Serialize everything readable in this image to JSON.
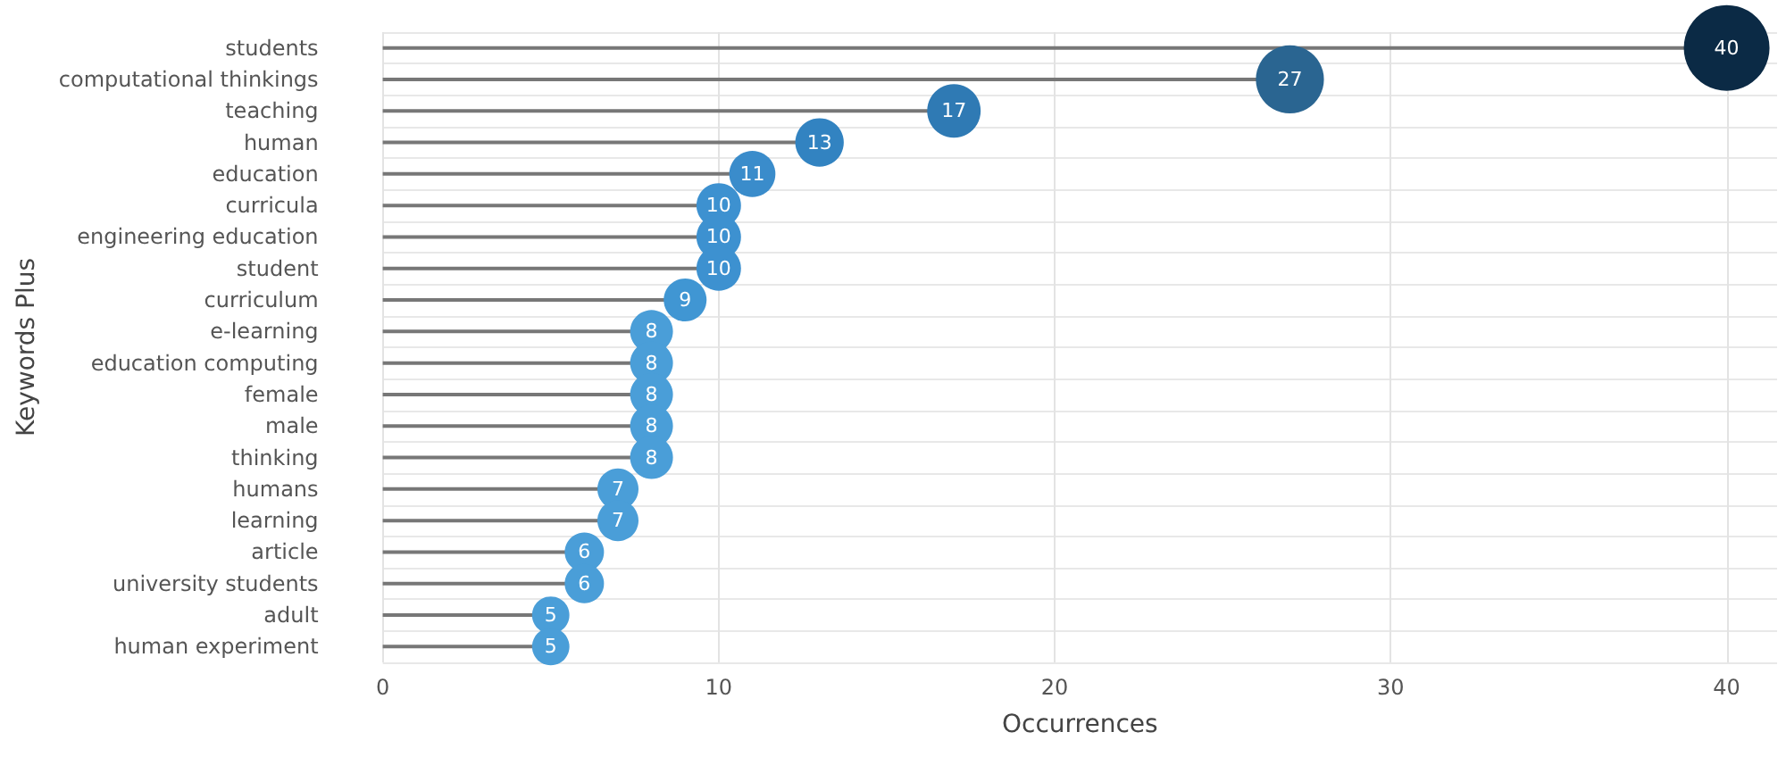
{
  "chart_data": {
    "type": "lollipop",
    "orientation": "horizontal",
    "xlabel": "Occurrences",
    "ylabel": "Keywords Plus",
    "categories": [
      "students",
      "computational thinkings",
      "teaching",
      "human",
      "education",
      "curricula",
      "engineering education",
      "student",
      "curriculum",
      "e-learning",
      "education computing",
      "female",
      "male",
      "thinking",
      "humans",
      "learning",
      "article",
      "university students",
      "adult",
      "human experiment"
    ],
    "values": [
      40,
      27,
      17,
      13,
      11,
      10,
      10,
      10,
      9,
      8,
      8,
      8,
      8,
      8,
      7,
      7,
      6,
      6,
      5,
      5
    ],
    "colors": [
      "#0b2a45",
      "#2a6591",
      "#2f7ab4",
      "#3283c1",
      "#3a8ccb",
      "#3d91d0",
      "#3d91d0",
      "#3d91d0",
      "#4096d3",
      "#4a9ed8",
      "#4a9ed8",
      "#4a9ed8",
      "#4a9ed8",
      "#4a9ed8",
      "#4a9ed8",
      "#4a9ed8",
      "#4a9ed8",
      "#4a9ed8",
      "#4a9ed8",
      "#4a9ed8"
    ],
    "sizes": [
      1,
      0.63,
      0.39,
      0.32,
      0.29,
      0.27,
      0.27,
      0.27,
      0.25,
      0.25,
      0.25,
      0.25,
      0.25,
      0.25,
      0.23,
      0.23,
      0.21,
      0.21,
      0.19,
      0.19
    ],
    "xlim": [
      0,
      41.5
    ],
    "xticks": [
      0,
      10,
      20,
      30,
      40
    ],
    "grid": true,
    "data_labels": true
  }
}
